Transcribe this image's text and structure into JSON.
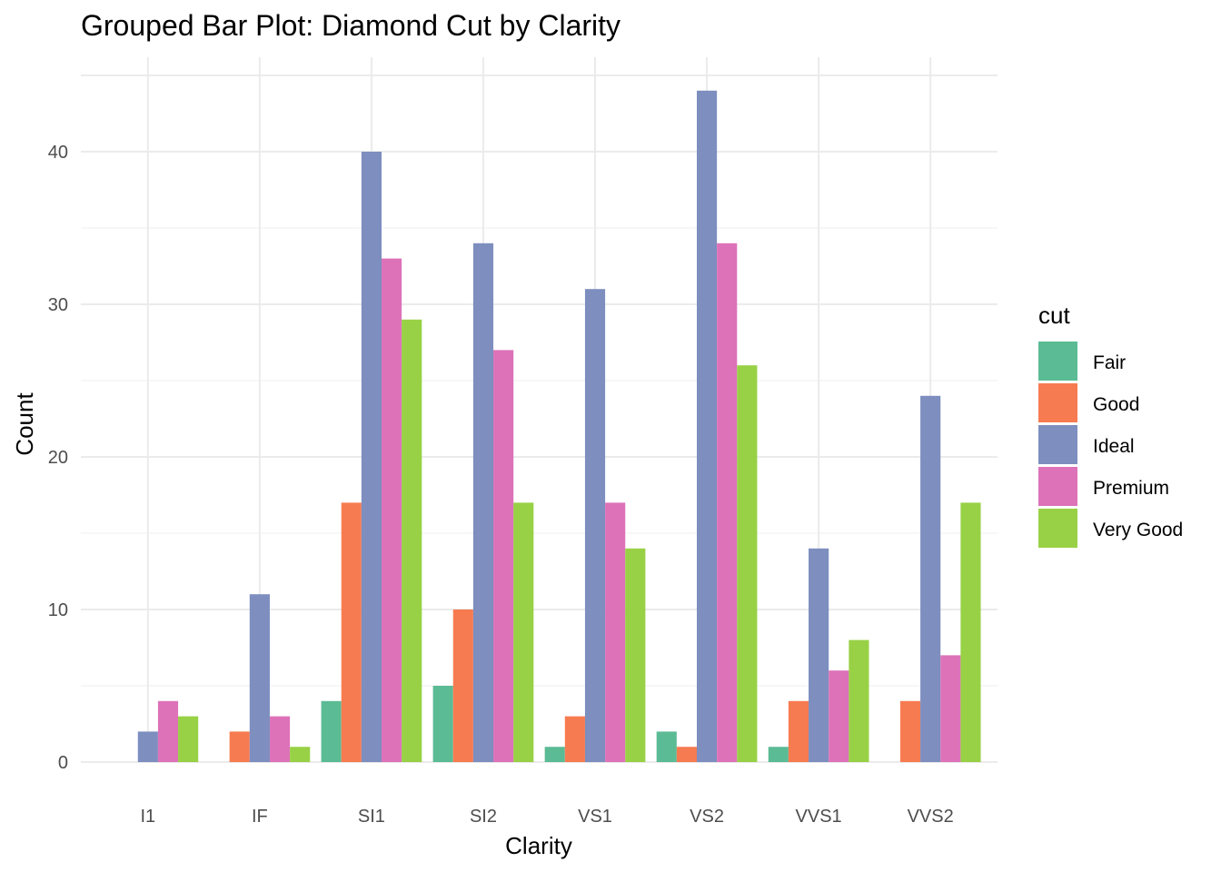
{
  "chart_data": {
    "type": "bar",
    "title": "Grouped Bar Plot: Diamond Cut by Clarity",
    "xlabel": "Clarity",
    "ylabel": "Count",
    "categories": [
      "I1",
      "IF",
      "SI1",
      "SI2",
      "VS1",
      "VS2",
      "VVS1",
      "VVS2"
    ],
    "y_ticks": [
      0,
      10,
      20,
      30,
      40
    ],
    "ylim": [
      0,
      45
    ],
    "grid": true,
    "legend": {
      "title": "cut",
      "position": "right"
    },
    "series": [
      {
        "name": "Fair",
        "color": "#5bbb95",
        "values": [
          0,
          0,
          4,
          5,
          1,
          2,
          1,
          0
        ]
      },
      {
        "name": "Good",
        "color": "#f77b51",
        "values": [
          0,
          2,
          17,
          10,
          3,
          1,
          4,
          4
        ]
      },
      {
        "name": "Ideal",
        "color": "#7d8ebf",
        "values": [
          2,
          11,
          40,
          34,
          31,
          44,
          14,
          24
        ]
      },
      {
        "name": "Premium",
        "color": "#dd72b9",
        "values": [
          4,
          3,
          33,
          27,
          17,
          34,
          6,
          7
        ]
      },
      {
        "name": "Very Good",
        "color": "#98d145",
        "values": [
          3,
          1,
          29,
          17,
          14,
          26,
          8,
          17
        ]
      }
    ]
  }
}
